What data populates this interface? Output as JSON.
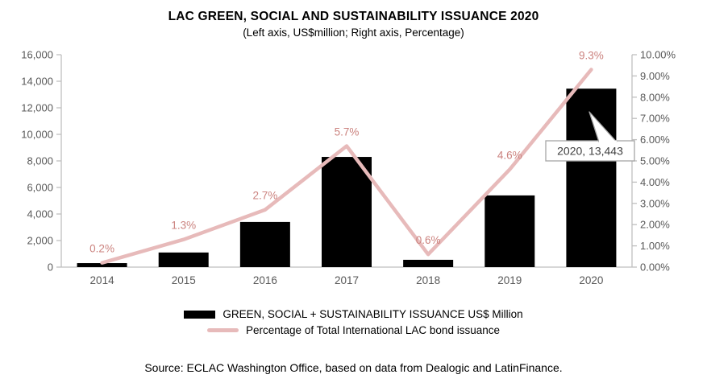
{
  "chart": {
    "title": "LAC GREEN, SOCIAL AND SUSTAINABILITY ISSUANCE 2020",
    "subtitle": "(Left axis, US$million; Right axis, Percentage)",
    "source": "Source: ECLAC Washington Office, based on data from Dealogic and LatinFinance."
  },
  "legend": {
    "bars_label": "GREEN, SOCIAL + SUSTAINABILITY ISSUANCE US$ Million",
    "line_label": "Percentage of Total International LAC bond issuance"
  },
  "chart_data": {
    "type": "bar",
    "subtype": "bar+line combo, dual axis",
    "title": "LAC GREEN, SOCIAL AND SUSTAINABILITY ISSUANCE 2020",
    "subtitle": "(Left axis, US$million; Right axis, Percentage)",
    "categories": [
      "2014",
      "2015",
      "2016",
      "2017",
      "2018",
      "2019",
      "2020"
    ],
    "series": [
      {
        "name": "GREEN, SOCIAL + SUSTAINABILITY ISSUANCE US$ Million",
        "type": "bar",
        "axis": "left",
        "color": "#000000",
        "values": [
          300,
          1100,
          3400,
          8300,
          550,
          5400,
          13443
        ]
      },
      {
        "name": "Percentage of Total International LAC bond issuance",
        "type": "line",
        "axis": "right",
        "color": "#e7baba",
        "values": [
          0.2,
          1.3,
          2.7,
          5.7,
          0.6,
          4.6,
          9.3
        ],
        "point_labels": [
          "0.2%",
          "1.3%",
          "2.7%",
          "5.7%",
          "0.6%",
          "4.6%",
          "9.3%"
        ]
      }
    ],
    "left_axis": {
      "min": 0,
      "max": 16000,
      "tick_step": 2000,
      "tick_labels": [
        "0",
        "2,000",
        "4,000",
        "6,000",
        "8,000",
        "10,000",
        "12,000",
        "14,000",
        "16,000"
      ]
    },
    "right_axis": {
      "min": 0,
      "max": 10,
      "tick_step": 1,
      "tick_labels": [
        "0.00%",
        "1.00%",
        "2.00%",
        "3.00%",
        "4.00%",
        "5.00%",
        "6.00%",
        "7.00%",
        "8.00%",
        "9.00%",
        "10.00%"
      ]
    },
    "annotation": {
      "label": "2020, 13,443",
      "category": "2020",
      "value": 13443
    },
    "grid": false,
    "legend_position": "bottom",
    "colors": {
      "bar": "#000000",
      "line": "#e7baba",
      "point_label": "#cb827e",
      "axis_line": "#bfbfbf",
      "tick_label": "#595959",
      "callout_border": "#a6a6a6",
      "callout_text": "#3f3f3f"
    }
  }
}
